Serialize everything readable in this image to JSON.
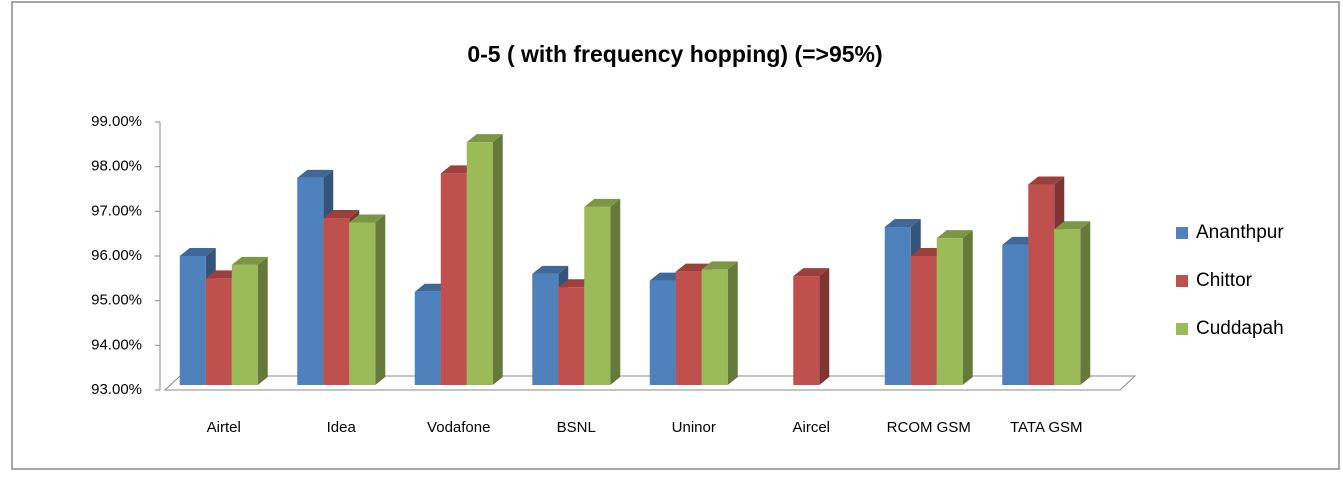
{
  "chart_data": {
    "type": "bar3d",
    "title": "0-5 ( with frequency hopping) (=>95%)",
    "categories": [
      "Airtel",
      "Idea",
      "Vodafone",
      "BSNL",
      "Uninor",
      "Aircel",
      "RCOM GSM",
      "TATA GSM"
    ],
    "series": [
      {
        "name": "Ananthpur",
        "color": "#4f81bd",
        "values": [
          96.0,
          97.75,
          95.2,
          95.6,
          95.45,
          null,
          96.65,
          96.25
        ]
      },
      {
        "name": "Chittor",
        "color": "#c0504d",
        "values": [
          95.5,
          96.85,
          97.85,
          95.3,
          95.65,
          95.55,
          96.0,
          97.6
        ]
      },
      {
        "name": "Cuddapah",
        "color": "#9bbb59",
        "values": [
          95.8,
          96.75,
          98.55,
          97.1,
          95.7,
          null,
          96.4,
          96.6
        ]
      }
    ],
    "ylim": [
      93,
      99
    ],
    "yticks": [
      {
        "value": 93,
        "label": "93.00%"
      },
      {
        "value": 94,
        "label": "94.00%"
      },
      {
        "value": 95,
        "label": "95.00%"
      },
      {
        "value": 96,
        "label": "96.00%"
      },
      {
        "value": 97,
        "label": "97.00%"
      },
      {
        "value": 98,
        "label": "98.00%"
      },
      {
        "value": 99,
        "label": "99.00%"
      }
    ],
    "legend": "right"
  }
}
